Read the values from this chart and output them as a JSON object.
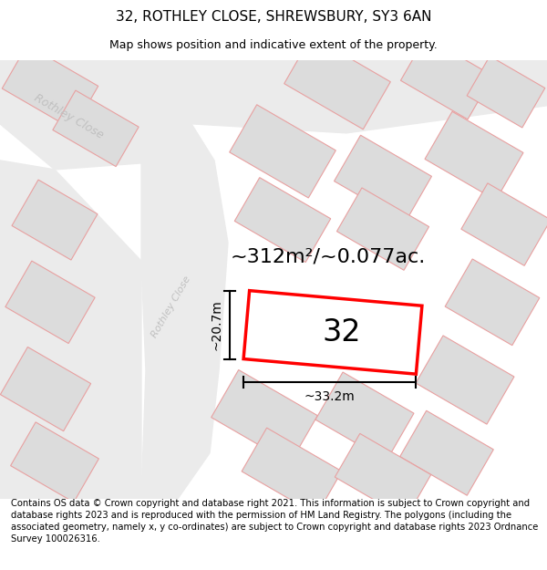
{
  "title": "32, ROTHLEY CLOSE, SHREWSBURY, SY3 6AN",
  "subtitle": "Map shows position and indicative extent of the property.",
  "footer": "Contains OS data © Crown copyright and database right 2021. This information is subject to Crown copyright and database rights 2023 and is reproduced with the permission of HM Land Registry. The polygons (including the associated geometry, namely x, y co-ordinates) are subject to Crown copyright and database rights 2023 Ordnance Survey 100026316.",
  "area_label": "~312m²/~0.077ac.",
  "width_label": "~33.2m",
  "height_label": "~20.7m",
  "plot_number": "32",
  "map_bg": "#f7f7f7",
  "road_fill": "#ebebeb",
  "plot_fill": "#dcdcdc",
  "highlight_color": "#ff0000",
  "road_label_color": "#c0c0c0",
  "plot_edge_color": "#e8a0a0",
  "title_fontsize": 11,
  "subtitle_fontsize": 9,
  "footer_fontsize": 7.2,
  "area_fontsize": 16,
  "plot_label_fontsize": 24,
  "dim_fontsize": 10
}
